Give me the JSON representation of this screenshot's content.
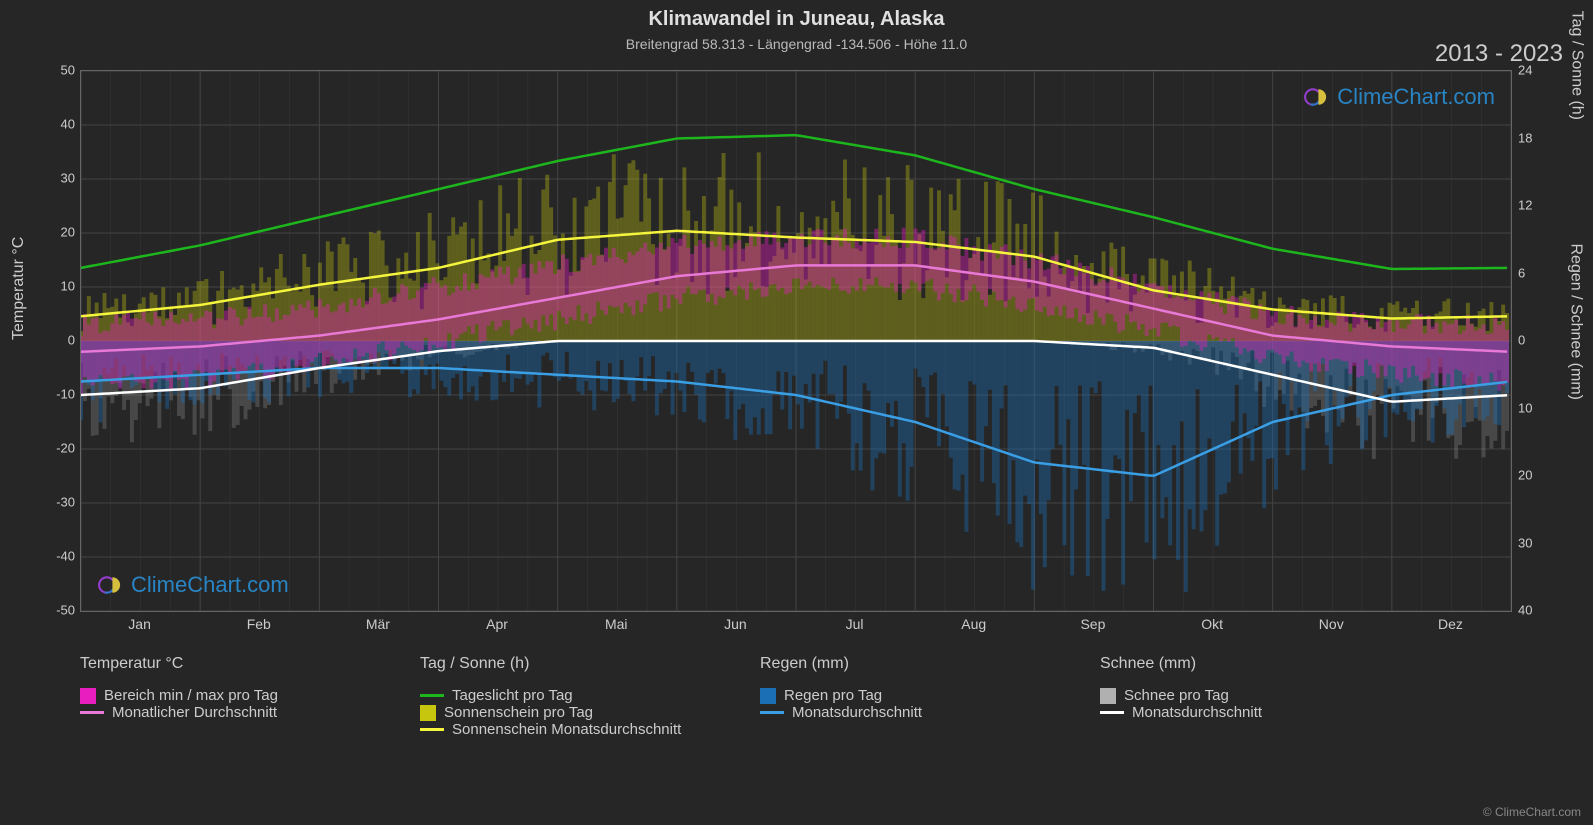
{
  "title": "Klimawandel in Juneau, Alaska",
  "subtitle": "Breitengrad 58.313 - Längengrad -134.506 - Höhe 11.0",
  "year_range": "2013 - 2023",
  "watermark_text": "ClimeChart.com",
  "copyright": "© ClimeChart.com",
  "background_color": "#262626",
  "plot_background": "#262626",
  "grid_color": "#444444",
  "axis_text_color": "#cccccc",
  "left_axis": {
    "label": "Temperatur °C",
    "min": -50,
    "max": 50,
    "step": 10,
    "ticks": [
      -50,
      -40,
      -30,
      -20,
      -10,
      0,
      10,
      20,
      30,
      40,
      50
    ]
  },
  "right_axis_top": {
    "label": "Tag / Sonne (h)",
    "ticks": [
      0,
      6,
      12,
      18,
      24
    ],
    "min_on_chart_y": 0,
    "max_on_chart_y": 50
  },
  "right_axis_bottom": {
    "label": "Regen / Schnee (mm)",
    "ticks": [
      0,
      10,
      20,
      30,
      40
    ],
    "min_on_chart_y": -50,
    "max_on_chart_y": 0
  },
  "right_axis_combined_label": "Tag / Sonne (h)          Regen / Schnee (mm)",
  "months": [
    "Jan",
    "Feb",
    "Mär",
    "Apr",
    "Mai",
    "Jun",
    "Jul",
    "Aug",
    "Sep",
    "Okt",
    "Nov",
    "Dez"
  ],
  "legend": {
    "col1_title": "Temperatur °C",
    "col1_items": [
      {
        "type": "box",
        "color": "#e91ebe",
        "label": "Bereich min / max pro Tag"
      },
      {
        "type": "line",
        "color": "#e879d6",
        "label": "Monatlicher Durchschnitt"
      }
    ],
    "col2_title": "Tag / Sonne (h)",
    "col2_items": [
      {
        "type": "line",
        "color": "#1db61d",
        "label": "Tageslicht pro Tag"
      },
      {
        "type": "box",
        "color": "#c6c60e",
        "label": "Sonnenschein pro Tag"
      },
      {
        "type": "line",
        "color": "#f5f53d",
        "label": "Sonnenschein Monatsdurchschnitt"
      }
    ],
    "col3_title": "Regen (mm)",
    "col3_items": [
      {
        "type": "box",
        "color": "#1a6fb5",
        "label": "Regen pro Tag"
      },
      {
        "type": "line",
        "color": "#3a9fe5",
        "label": "Monatsdurchschnitt"
      }
    ],
    "col4_title": "Schnee (mm)",
    "col4_items": [
      {
        "type": "box",
        "color": "#b0b0b0",
        "label": "Schnee pro Tag"
      },
      {
        "type": "line",
        "color": "#ffffff",
        "label": "Monatsdurchschnitt"
      }
    ]
  },
  "chart": {
    "type": "climate_multi",
    "n_days": 365,
    "colors": {
      "daylight_line": "#1db61d",
      "sunshine_line": "#f5f53d",
      "sunshine_bars": "#c6c60e",
      "temp_range": "#e91ebe",
      "temp_avg_line": "#e879d6",
      "rain_bars": "#1a6fb5",
      "rain_line": "#3a9fe5",
      "snow_bars": "#888888",
      "snow_line": "#ffffff"
    },
    "daylight_hours_monthly": [
      6.5,
      8.5,
      11,
      13.5,
      16,
      18,
      18.3,
      16.5,
      13.5,
      11,
      8.2,
      6.4
    ],
    "sunshine_hours_monthly": [
      2.2,
      3.2,
      5,
      6.5,
      9,
      9.8,
      9.2,
      8.8,
      7.5,
      4.5,
      2.8,
      2.0
    ],
    "temp_avg_monthly_c": [
      -2,
      -1,
      1,
      4,
      8,
      12,
      14,
      14,
      11,
      6,
      1,
      -1
    ],
    "temp_min_monthly_c": [
      -8,
      -7,
      -4,
      0,
      4,
      8,
      10,
      10,
      7,
      2,
      -3,
      -6
    ],
    "temp_max_monthly_c": [
      3,
      4,
      6,
      10,
      14,
      18,
      19,
      19,
      15,
      10,
      5,
      3
    ],
    "rain_mm_monthly": [
      6,
      5,
      4,
      4,
      5,
      6,
      8,
      12,
      18,
      20,
      12,
      8
    ],
    "snow_mm_monthly": [
      8,
      7,
      4,
      1.5,
      0,
      0,
      0,
      0,
      0,
      1,
      5,
      9
    ],
    "sunshine_bar_opacity": 0.35,
    "temp_range_bar_opacity": 0.4,
    "rain_bar_opacity": 0.4,
    "snow_bar_opacity": 0.35,
    "line_width": 2.5
  }
}
